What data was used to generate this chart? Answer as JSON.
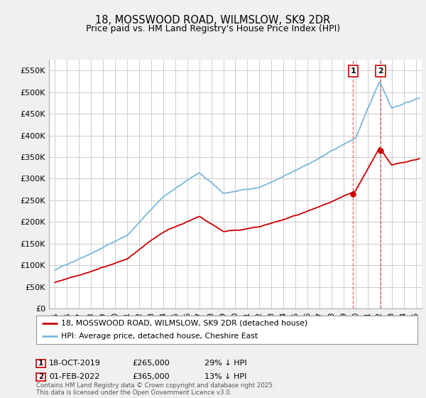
{
  "title": "18, MOSSWOOD ROAD, WILMSLOW, SK9 2DR",
  "subtitle": "Price paid vs. HM Land Registry's House Price Index (HPI)",
  "ylabel_ticks": [
    "£0",
    "£50K",
    "£100K",
    "£150K",
    "£200K",
    "£250K",
    "£300K",
    "£350K",
    "£400K",
    "£450K",
    "£500K",
    "£550K"
  ],
  "ytick_values": [
    0,
    50000,
    100000,
    150000,
    200000,
    250000,
    300000,
    350000,
    400000,
    450000,
    500000,
    550000
  ],
  "ylim": [
    0,
    575000
  ],
  "xlim_start": 1994.5,
  "xlim_end": 2025.5,
  "hpi_color": "#7ab8d9",
  "price_color": "#cc0000",
  "marker1_date": 2019.8,
  "marker2_date": 2022.08,
  "marker1_price": 265000,
  "marker2_price": 365000,
  "legend_line1": "18, MOSSWOOD ROAD, WILMSLOW, SK9 2DR (detached house)",
  "legend_line2": "HPI: Average price, detached house, Cheshire East",
  "footer": "Contains HM Land Registry data © Crown copyright and database right 2025.\nThis data is licensed under the Open Government Licence v3.0.",
  "background_color": "#f0f0f0",
  "plot_bg_color": "#ffffff",
  "grid_color": "#cccccc"
}
